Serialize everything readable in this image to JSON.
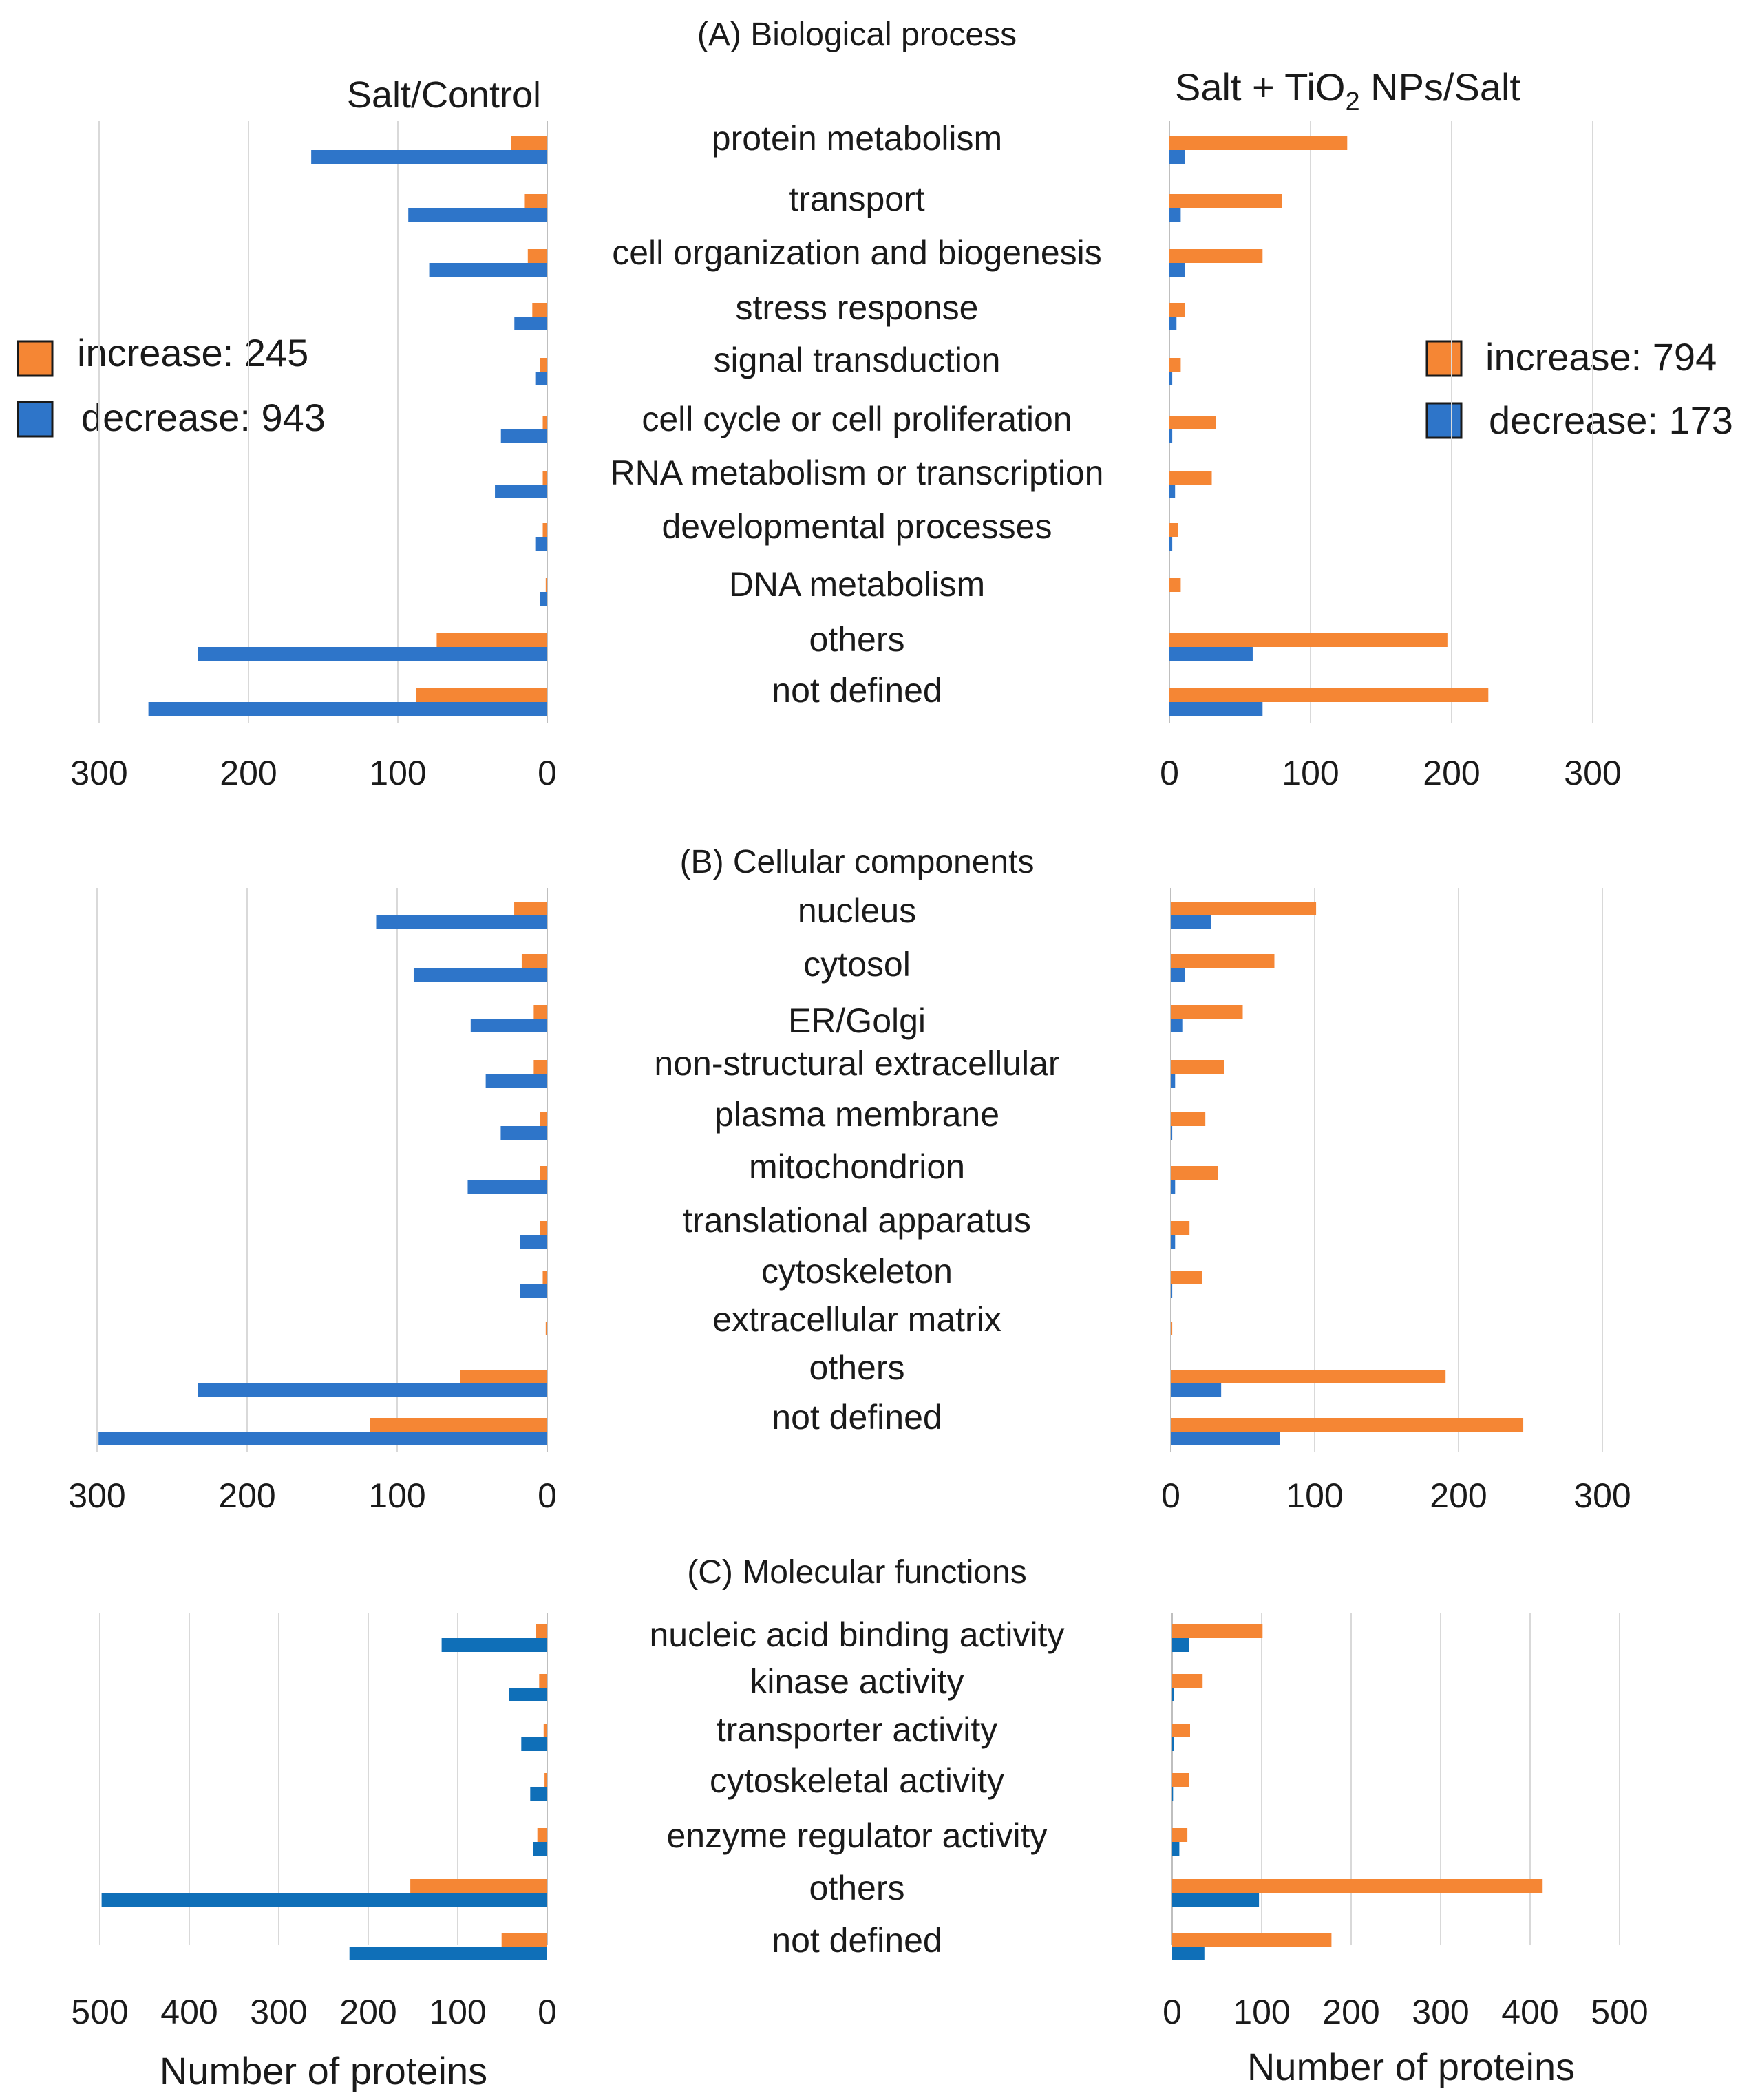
{
  "colors": {
    "increase": "#f58634",
    "decrease": "#2e75c9",
    "decrease_c": "#0f6fb8",
    "grid": "#d9d9d9",
    "text": "#1a1a1a"
  },
  "headers": {
    "left": "Salt/Control",
    "right_prefix": "Salt + TiO",
    "right_sub": "2",
    "right_suffix": " NPs/Salt"
  },
  "legend_left": {
    "increase": "increase: 245",
    "decrease": "decrease: 943"
  },
  "legend_right": {
    "increase": "increase: 794",
    "decrease": "decrease: 173"
  },
  "xlabel_left": "Number of proteins",
  "xlabel_right": "Number of proteins",
  "chart_data": [
    {
      "type": "bar",
      "title": "(A) Biological process",
      "categories": [
        "protein metabolism",
        "transport",
        "cell organization and biogenesis",
        "stress response",
        "signal transduction",
        "cell cycle or cell proliferation",
        "RNA metabolism or transcription",
        "developmental processes",
        "DNA metabolism",
        "others",
        "not defined"
      ],
      "salt_control": {
        "xlim": [
          0,
          300
        ],
        "ticks": [
          300,
          200,
          100,
          0
        ],
        "series": [
          {
            "name": "increase",
            "values": [
              24,
              15,
              13,
              10,
              5,
              3,
              3,
              3,
              1,
              74,
              88
            ]
          },
          {
            "name": "decrease",
            "values": [
              158,
              93,
              79,
              22,
              8,
              31,
              35,
              8,
              5,
              234,
              267
            ]
          }
        ]
      },
      "salt_tio2_salt": {
        "xlim": [
          0,
          300
        ],
        "ticks": [
          0,
          100,
          200,
          300
        ],
        "series": [
          {
            "name": "increase",
            "values": [
              126,
              80,
              66,
              11,
              8,
              33,
              30,
              6,
              8,
              197,
              226
            ]
          },
          {
            "name": "decrease",
            "values": [
              11,
              8,
              11,
              5,
              2,
              2,
              4,
              2,
              0,
              59,
              66
            ]
          }
        ]
      }
    },
    {
      "type": "bar",
      "title": "(B) Cellular components",
      "categories": [
        "nucleus",
        "cytosol",
        "ER/Golgi",
        "non-structural extracellular",
        "plasma membrane",
        "mitochondrion",
        "translational apparatus",
        "cytoskeleton",
        "extracellular matrix",
        "others",
        "not defined"
      ],
      "salt_control": {
        "xlim": [
          0,
          300
        ],
        "ticks": [
          300,
          200,
          100,
          0
        ],
        "series": [
          {
            "name": "increase",
            "values": [
              22,
              17,
              9,
              9,
              5,
              5,
              5,
              3,
              1,
              58,
              118
            ]
          },
          {
            "name": "decrease",
            "values": [
              114,
              89,
              51,
              41,
              31,
              53,
              18,
              18,
              0,
              233,
              299
            ]
          }
        ]
      },
      "salt_tio2_salt": {
        "xlim": [
          0,
          300
        ],
        "ticks": [
          0,
          100,
          200,
          300
        ],
        "series": [
          {
            "name": "increase",
            "values": [
              101,
              72,
              50,
              37,
              24,
              33,
              13,
              22,
              1,
              191,
              245
            ]
          },
          {
            "name": "decrease",
            "values": [
              28,
              10,
              8,
              3,
              1,
              3,
              3,
              1,
              0,
              35,
              76
            ]
          }
        ]
      }
    },
    {
      "type": "bar",
      "title": "(C) Molecular functions",
      "categories": [
        "nucleic acid binding activity",
        "kinase activity",
        "transporter activity",
        "cytoskeletal activity",
        "enzyme regulator activity",
        "others",
        "not defined"
      ],
      "salt_control": {
        "xlim": [
          0,
          500
        ],
        "ticks": [
          500,
          400,
          300,
          200,
          100,
          0
        ],
        "series": [
          {
            "name": "increase",
            "values": [
              13,
              9,
              4,
              3,
              11,
              153,
              51
            ]
          },
          {
            "name": "decrease",
            "values": [
              118,
              43,
              29,
              19,
              16,
              498,
              221
            ]
          }
        ]
      },
      "salt_tio2_salt": {
        "xlim": [
          0,
          500
        ],
        "ticks": [
          0,
          100,
          200,
          300,
          400,
          500
        ],
        "series": [
          {
            "name": "increase",
            "values": [
              101,
              34,
              20,
              19,
              17,
              414,
              178
            ]
          },
          {
            "name": "decrease",
            "values": [
              19,
              2,
              2,
              1,
              8,
              97,
              36
            ]
          }
        ]
      }
    }
  ]
}
